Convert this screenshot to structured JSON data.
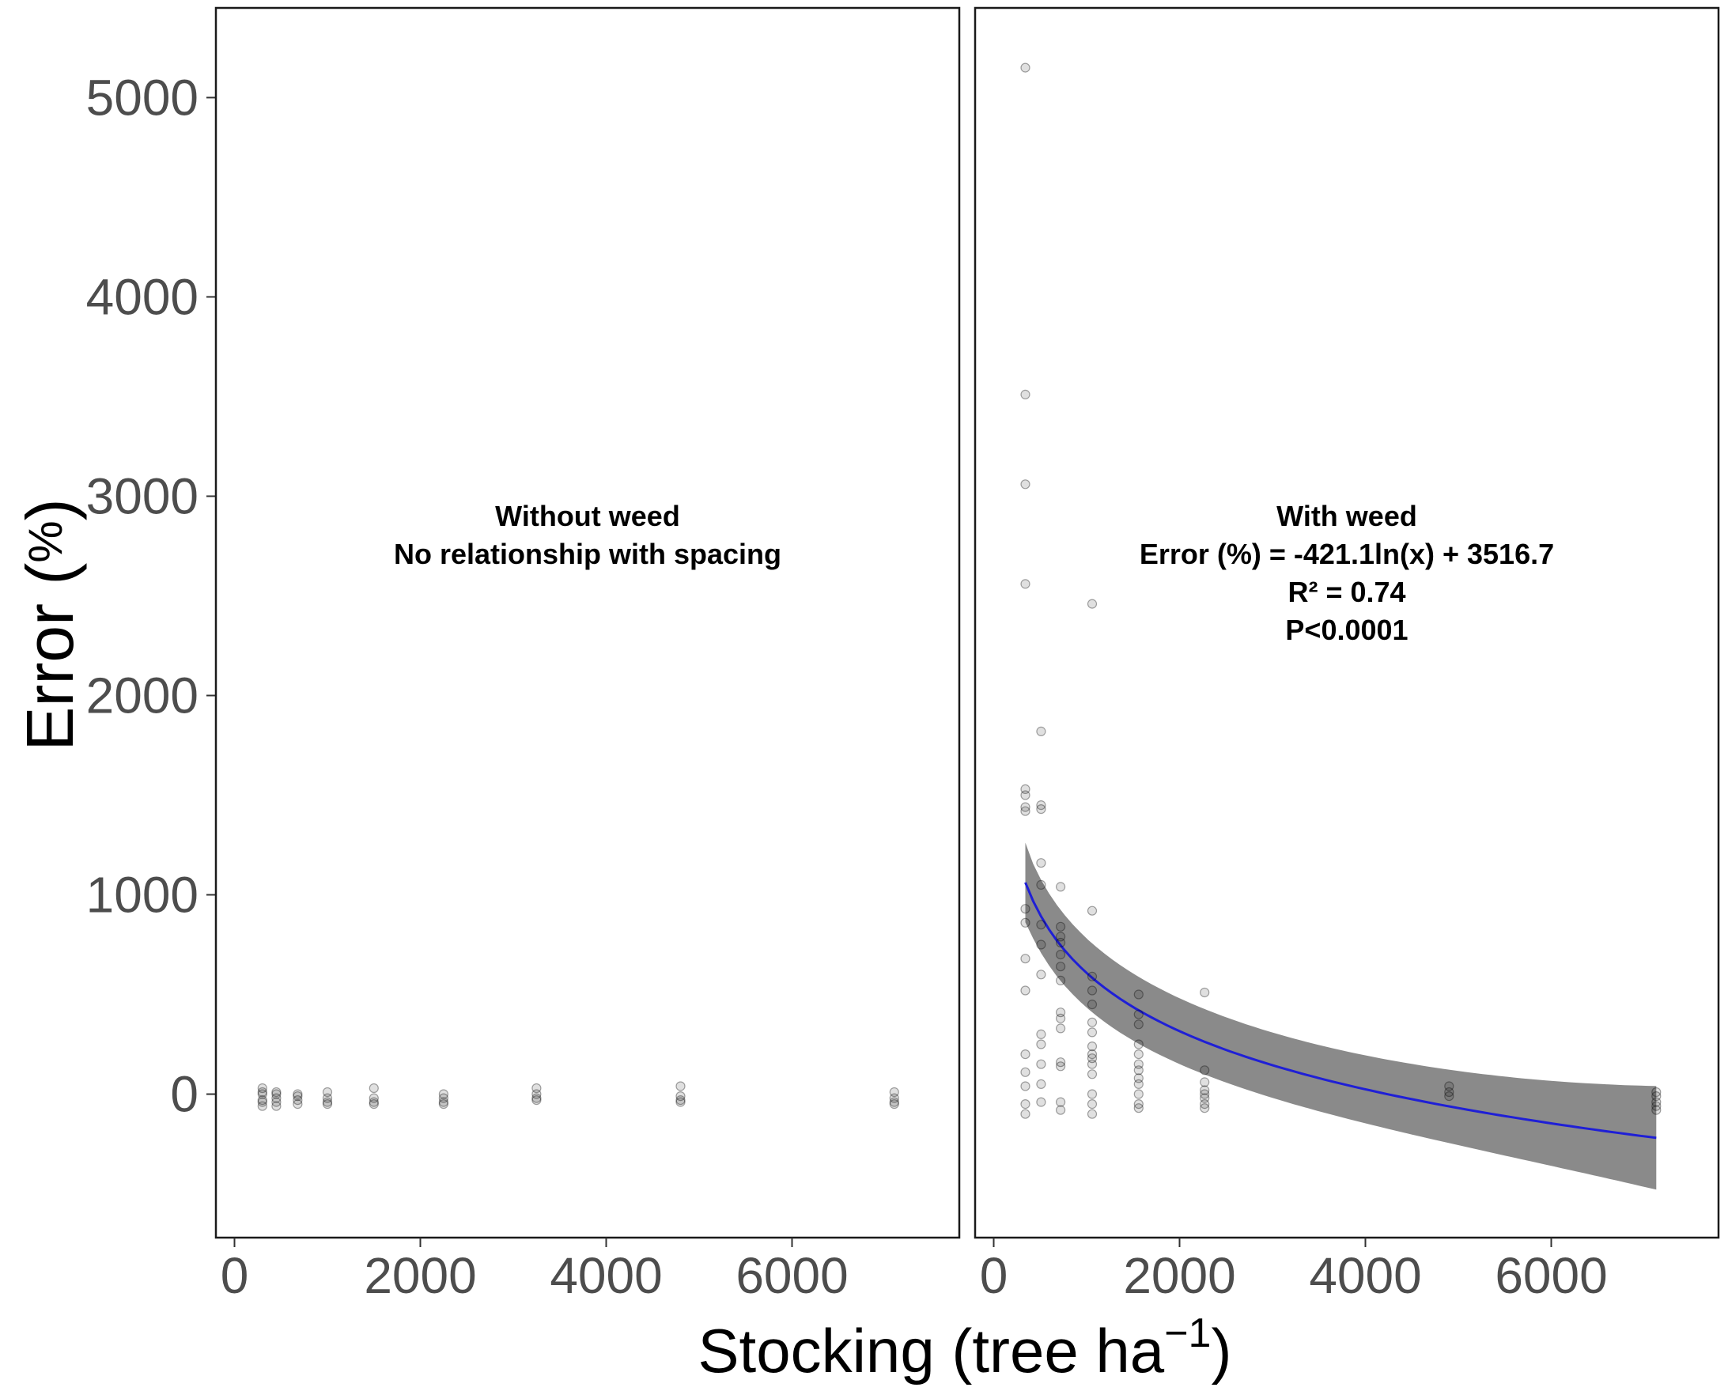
{
  "chart_data": {
    "type": "scatter",
    "xlabel": "Stocking (tree ha",
    "xlabel_superscript": "−1",
    "xlabel_close": ")",
    "ylabel_main": "Error (",
    "ylabel_pct": "%",
    "ylabel_close": ")",
    "xlim": [
      -200,
      7800
    ],
    "ylim": [
      -720,
      5450
    ],
    "x_ticks": [
      0,
      2000,
      4000,
      6000
    ],
    "x_tick_labels": [
      "0",
      "2000",
      "4000",
      "6000"
    ],
    "y_ticks": [
      0,
      1000,
      2000,
      3000,
      4000,
      5000
    ],
    "y_tick_labels": [
      "0",
      "1000",
      "2000",
      "3000",
      "4000",
      "5000"
    ],
    "grid": false,
    "colors": {
      "point": "#000000",
      "fit_line": "#1f1fd6",
      "confidence_band": "#8a8a8a",
      "frame": "#1a1a1a"
    },
    "panels": [
      {
        "annotation_lines": [
          "Without weed",
          "No relationship with spacing"
        ],
        "points": [
          [
            300,
            30
          ],
          [
            300,
            0
          ],
          [
            300,
            -30
          ],
          [
            300,
            -60
          ],
          [
            300,
            10
          ],
          [
            300,
            -40
          ],
          [
            450,
            10
          ],
          [
            450,
            -20
          ],
          [
            450,
            -40
          ],
          [
            450,
            -60
          ],
          [
            450,
            0
          ],
          [
            680,
            -10
          ],
          [
            680,
            -30
          ],
          [
            680,
            -50
          ],
          [
            680,
            0
          ],
          [
            1000,
            10
          ],
          [
            1000,
            -20
          ],
          [
            1000,
            -40
          ],
          [
            1000,
            -50
          ],
          [
            1500,
            30
          ],
          [
            1500,
            -20
          ],
          [
            1500,
            -40
          ],
          [
            1500,
            -50
          ],
          [
            2250,
            0
          ],
          [
            2250,
            -20
          ],
          [
            2250,
            -40
          ],
          [
            2250,
            -50
          ],
          [
            3250,
            30
          ],
          [
            3250,
            0
          ],
          [
            3250,
            -20
          ],
          [
            3250,
            -30
          ],
          [
            4800,
            40
          ],
          [
            4800,
            -10
          ],
          [
            4800,
            -30
          ],
          [
            4800,
            -40
          ],
          [
            7100,
            10
          ],
          [
            7100,
            -20
          ],
          [
            7100,
            -40
          ],
          [
            7100,
            -50
          ]
        ],
        "fit": null
      },
      {
        "annotation_lines": [
          "With weed",
          "Error (%)  = -421.1ln(x) + 3516.7",
          "R² = 0.74",
          "P<0.0001"
        ],
        "points": [
          [
            340,
            5150
          ],
          [
            340,
            3510
          ],
          [
            340,
            3060
          ],
          [
            340,
            2560
          ],
          [
            340,
            1530
          ],
          [
            340,
            1500
          ],
          [
            340,
            1440
          ],
          [
            340,
            1420
          ],
          [
            340,
            930
          ],
          [
            340,
            860
          ],
          [
            340,
            680
          ],
          [
            340,
            520
          ],
          [
            340,
            200
          ],
          [
            340,
            110
          ],
          [
            340,
            40
          ],
          [
            340,
            -50
          ],
          [
            340,
            -100
          ],
          [
            510,
            1820
          ],
          [
            510,
            1450
          ],
          [
            510,
            1430
          ],
          [
            510,
            1160
          ],
          [
            510,
            1050
          ],
          [
            510,
            850
          ],
          [
            510,
            750
          ],
          [
            510,
            600
          ],
          [
            510,
            300
          ],
          [
            510,
            250
          ],
          [
            510,
            150
          ],
          [
            510,
            50
          ],
          [
            510,
            -40
          ],
          [
            720,
            1040
          ],
          [
            720,
            840
          ],
          [
            720,
            790
          ],
          [
            720,
            760
          ],
          [
            720,
            700
          ],
          [
            720,
            640
          ],
          [
            720,
            570
          ],
          [
            720,
            410
          ],
          [
            720,
            380
          ],
          [
            720,
            330
          ],
          [
            720,
            160
          ],
          [
            720,
            140
          ],
          [
            720,
            -40
          ],
          [
            720,
            -80
          ],
          [
            1060,
            2460
          ],
          [
            1060,
            920
          ],
          [
            1060,
            590
          ],
          [
            1060,
            520
          ],
          [
            1060,
            450
          ],
          [
            1060,
            360
          ],
          [
            1060,
            310
          ],
          [
            1060,
            240
          ],
          [
            1060,
            200
          ],
          [
            1060,
            180
          ],
          [
            1060,
            150
          ],
          [
            1060,
            100
          ],
          [
            1060,
            0
          ],
          [
            1060,
            -50
          ],
          [
            1060,
            -100
          ],
          [
            1560,
            500
          ],
          [
            1560,
            400
          ],
          [
            1560,
            350
          ],
          [
            1560,
            250
          ],
          [
            1560,
            200
          ],
          [
            1560,
            150
          ],
          [
            1560,
            120
          ],
          [
            1560,
            80
          ],
          [
            1560,
            50
          ],
          [
            1560,
            0
          ],
          [
            1560,
            -50
          ],
          [
            1560,
            -70
          ],
          [
            2270,
            510
          ],
          [
            2270,
            120
          ],
          [
            2270,
            60
          ],
          [
            2270,
            20
          ],
          [
            2270,
            0
          ],
          [
            2270,
            -20
          ],
          [
            2270,
            -50
          ],
          [
            2270,
            -70
          ],
          [
            4900,
            40
          ],
          [
            4900,
            10
          ],
          [
            4900,
            -10
          ],
          [
            7130,
            10
          ],
          [
            7130,
            -10
          ],
          [
            7130,
            -40
          ],
          [
            7130,
            -60
          ],
          [
            7130,
            -80
          ]
        ],
        "fit": {
          "a": -421.1,
          "b": 3516.7,
          "x_start": 340,
          "x_end": 7130,
          "band_start": 200,
          "band_end": 140
        }
      }
    ]
  }
}
